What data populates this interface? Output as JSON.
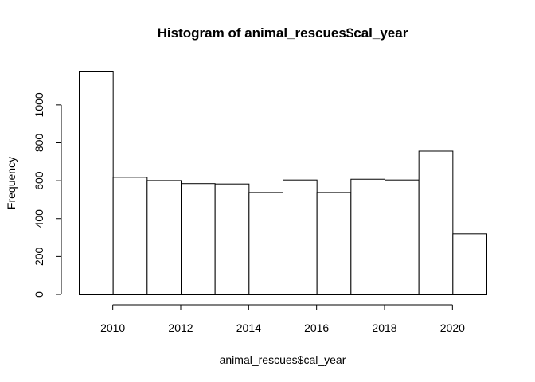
{
  "chart_data": {
    "type": "bar",
    "title": "Histogram of animal_rescues$cal_year",
    "xlabel": "animal_rescues$cal_year",
    "ylabel": "Frequency",
    "bins": [
      {
        "start": 2009,
        "end": 2010,
        "count": 1180
      },
      {
        "start": 2010,
        "end": 2011,
        "count": 620
      },
      {
        "start": 2011,
        "end": 2012,
        "count": 603
      },
      {
        "start": 2012,
        "end": 2013,
        "count": 587
      },
      {
        "start": 2013,
        "end": 2014,
        "count": 585
      },
      {
        "start": 2014,
        "end": 2015,
        "count": 540
      },
      {
        "start": 2015,
        "end": 2016,
        "count": 606
      },
      {
        "start": 2016,
        "end": 2017,
        "count": 540
      },
      {
        "start": 2017,
        "end": 2018,
        "count": 610
      },
      {
        "start": 2018,
        "end": 2019,
        "count": 606
      },
      {
        "start": 2019,
        "end": 2020,
        "count": 758
      },
      {
        "start": 2020,
        "end": 2021,
        "count": 322
      }
    ],
    "xlim": [
      2009,
      2021
    ],
    "ylim": [
      0,
      1180
    ],
    "x_ticks": [
      2010,
      2012,
      2014,
      2016,
      2018,
      2020
    ],
    "y_ticks": [
      0,
      200,
      400,
      600,
      800,
      1000
    ],
    "grid": false,
    "colors": {
      "bar_fill": "#ffffff",
      "bar_stroke": "#000000"
    }
  }
}
